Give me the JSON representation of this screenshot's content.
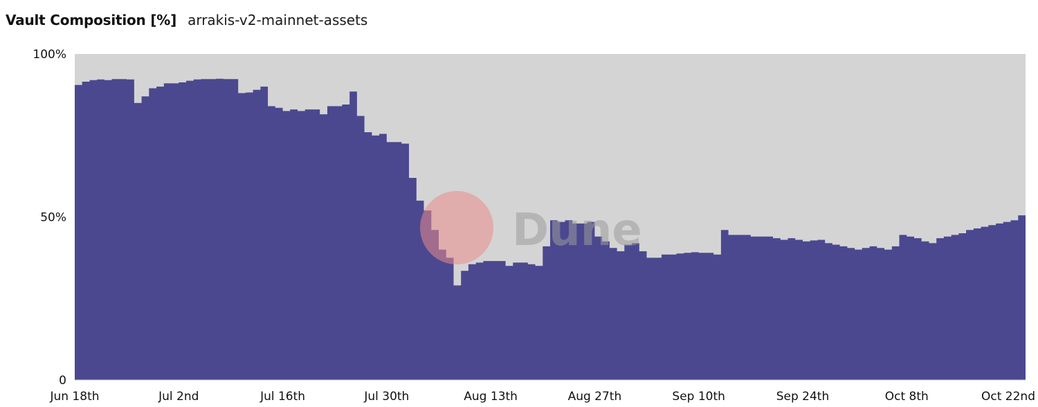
{
  "header": {
    "title": "Vault Composition [%]",
    "subtitle": "arrakis-v2-mainnet-assets"
  },
  "watermark": {
    "text": "Dune"
  },
  "colors": {
    "series_primary": "#4b4890",
    "series_remainder": "#d4d4d4",
    "watermark_circle": "#e98a8a"
  },
  "chart_data": {
    "type": "area",
    "stacked": true,
    "title": "Vault Composition [%]",
    "xlabel": "",
    "ylabel": "",
    "ylim": [
      0,
      100
    ],
    "yticks": [
      0,
      50,
      100
    ],
    "ytick_labels": [
      "0",
      "50%",
      "100%"
    ],
    "xlim": [
      "2023-06-18",
      "2023-10-24"
    ],
    "xtick_dates": [
      "2023-06-18",
      "2023-07-02",
      "2023-07-16",
      "2023-07-30",
      "2023-08-13",
      "2023-08-27",
      "2023-09-10",
      "2023-09-24",
      "2023-10-08",
      "2023-10-22"
    ],
    "xtick_labels": [
      "Jun 18th",
      "Jul 2nd",
      "Jul 16th",
      "Jul 30th",
      "Aug 13th",
      "Aug 27th",
      "Sep 10th",
      "Sep 24th",
      "Oct 8th",
      "Oct 22nd"
    ],
    "grid": false,
    "legend": "none",
    "series": [
      {
        "color": "#4b4890",
        "points": [
          [
            "2023-06-18",
            90.5
          ],
          [
            "2023-06-19",
            91.5
          ],
          [
            "2023-06-20",
            92.0
          ],
          [
            "2023-06-21",
            92.2
          ],
          [
            "2023-06-22",
            92.0
          ],
          [
            "2023-06-23",
            92.3
          ],
          [
            "2023-06-24",
            92.3
          ],
          [
            "2023-06-25",
            92.2
          ],
          [
            "2023-06-26",
            85.0
          ],
          [
            "2023-06-27",
            87.0
          ],
          [
            "2023-06-28",
            89.5
          ],
          [
            "2023-06-29",
            90.0
          ],
          [
            "2023-06-30",
            91.0
          ],
          [
            "2023-07-01",
            91.0
          ],
          [
            "2023-07-02",
            91.3
          ],
          [
            "2023-07-03",
            91.8
          ],
          [
            "2023-07-04",
            92.2
          ],
          [
            "2023-07-05",
            92.3
          ],
          [
            "2023-07-06",
            92.3
          ],
          [
            "2023-07-07",
            92.4
          ],
          [
            "2023-07-08",
            92.3
          ],
          [
            "2023-07-09",
            92.3
          ],
          [
            "2023-07-10",
            88.0
          ],
          [
            "2023-07-11",
            88.2
          ],
          [
            "2023-07-12",
            89.0
          ],
          [
            "2023-07-13",
            90.0
          ],
          [
            "2023-07-14",
            84.0
          ],
          [
            "2023-07-15",
            83.5
          ],
          [
            "2023-07-16",
            82.5
          ],
          [
            "2023-07-17",
            83.0
          ],
          [
            "2023-07-18",
            82.5
          ],
          [
            "2023-07-19",
            83.0
          ],
          [
            "2023-07-20",
            83.0
          ],
          [
            "2023-07-21",
            81.5
          ],
          [
            "2023-07-22",
            84.0
          ],
          [
            "2023-07-23",
            84.0
          ],
          [
            "2023-07-24",
            84.5
          ],
          [
            "2023-07-25",
            88.5
          ],
          [
            "2023-07-26",
            81.0
          ],
          [
            "2023-07-27",
            76.0
          ],
          [
            "2023-07-28",
            75.0
          ],
          [
            "2023-07-29",
            75.5
          ],
          [
            "2023-07-30",
            73.0
          ],
          [
            "2023-07-31",
            73.0
          ],
          [
            "2023-08-01",
            72.5
          ],
          [
            "2023-08-02",
            62.0
          ],
          [
            "2023-08-03",
            55.0
          ],
          [
            "2023-08-04",
            52.0
          ],
          [
            "2023-08-05",
            46.0
          ],
          [
            "2023-08-06",
            40.0
          ],
          [
            "2023-08-07",
            37.5
          ],
          [
            "2023-08-08",
            29.0
          ],
          [
            "2023-08-09",
            33.5
          ],
          [
            "2023-08-10",
            35.5
          ],
          [
            "2023-08-11",
            36.0
          ],
          [
            "2023-08-12",
            36.5
          ],
          [
            "2023-08-13",
            36.5
          ],
          [
            "2023-08-14",
            36.5
          ],
          [
            "2023-08-15",
            35.0
          ],
          [
            "2023-08-16",
            36.0
          ],
          [
            "2023-08-17",
            36.0
          ],
          [
            "2023-08-18",
            35.5
          ],
          [
            "2023-08-19",
            35.0
          ],
          [
            "2023-08-20",
            41.0
          ],
          [
            "2023-08-21",
            49.0
          ],
          [
            "2023-08-22",
            48.5
          ],
          [
            "2023-08-23",
            49.0
          ],
          [
            "2023-08-24",
            48.0
          ],
          [
            "2023-08-25",
            48.0
          ],
          [
            "2023-08-26",
            48.5
          ],
          [
            "2023-08-27",
            44.0
          ],
          [
            "2023-08-28",
            42.5
          ],
          [
            "2023-08-29",
            40.5
          ],
          [
            "2023-08-30",
            39.5
          ],
          [
            "2023-08-31",
            41.5
          ],
          [
            "2023-09-01",
            42.0
          ],
          [
            "2023-09-02",
            39.5
          ],
          [
            "2023-09-03",
            37.5
          ],
          [
            "2023-09-04",
            37.5
          ],
          [
            "2023-09-05",
            38.5
          ],
          [
            "2023-09-06",
            38.5
          ],
          [
            "2023-09-07",
            38.8
          ],
          [
            "2023-09-08",
            39.0
          ],
          [
            "2023-09-09",
            39.2
          ],
          [
            "2023-09-10",
            39.0
          ],
          [
            "2023-09-11",
            39.0
          ],
          [
            "2023-09-12",
            38.5
          ],
          [
            "2023-09-13",
            46.0
          ],
          [
            "2023-09-14",
            44.5
          ],
          [
            "2023-09-15",
            44.5
          ],
          [
            "2023-09-16",
            44.5
          ],
          [
            "2023-09-17",
            44.0
          ],
          [
            "2023-09-18",
            44.0
          ],
          [
            "2023-09-19",
            44.0
          ],
          [
            "2023-09-20",
            43.5
          ],
          [
            "2023-09-21",
            43.0
          ],
          [
            "2023-09-22",
            43.5
          ],
          [
            "2023-09-23",
            43.0
          ],
          [
            "2023-09-24",
            42.5
          ],
          [
            "2023-09-25",
            42.8
          ],
          [
            "2023-09-26",
            43.0
          ],
          [
            "2023-09-27",
            42.0
          ],
          [
            "2023-09-28",
            41.5
          ],
          [
            "2023-09-29",
            41.0
          ],
          [
            "2023-09-30",
            40.5
          ],
          [
            "2023-10-01",
            40.0
          ],
          [
            "2023-10-02",
            40.5
          ],
          [
            "2023-10-03",
            41.0
          ],
          [
            "2023-10-04",
            40.5
          ],
          [
            "2023-10-05",
            40.0
          ],
          [
            "2023-10-06",
            41.0
          ],
          [
            "2023-10-07",
            44.5
          ],
          [
            "2023-10-08",
            44.0
          ],
          [
            "2023-10-09",
            43.5
          ],
          [
            "2023-10-10",
            42.5
          ],
          [
            "2023-10-11",
            42.0
          ],
          [
            "2023-10-12",
            43.5
          ],
          [
            "2023-10-13",
            44.0
          ],
          [
            "2023-10-14",
            44.5
          ],
          [
            "2023-10-15",
            45.0
          ],
          [
            "2023-10-16",
            46.0
          ],
          [
            "2023-10-17",
            46.5
          ],
          [
            "2023-10-18",
            47.0
          ],
          [
            "2023-10-19",
            47.5
          ],
          [
            "2023-10-20",
            48.0
          ],
          [
            "2023-10-21",
            48.5
          ],
          [
            "2023-10-22",
            49.0
          ],
          [
            "2023-10-23",
            50.5
          ],
          [
            "2023-10-24",
            47.5
          ]
        ]
      },
      {
        "color": "#d4d4d4",
        "values_note_remainder": "",
        "stack_fill_to": 100
      }
    ]
  }
}
